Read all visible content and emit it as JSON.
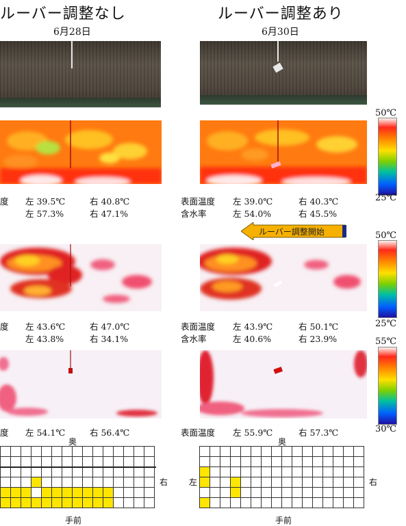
{
  "titles": {
    "left": "ルーバー調整なし",
    "right": "ルーバー調整あり"
  },
  "dates": {
    "left": "6月28日",
    "right": "6月30日"
  },
  "scales": [
    {
      "max": "50℃",
      "min": "25℃"
    },
    {
      "max": "50℃",
      "min": "25℃"
    },
    {
      "max": "55℃",
      "min": "30℃"
    }
  ],
  "arrow_label": "ルーバー調整開始",
  "rows": [
    {
      "left": {
        "label": "度",
        "left": "左 39.5℃",
        "right": "右 40.8℃",
        "sub_label": "",
        "sub_left": "左 57.3%",
        "sub_right": "右 47.1%"
      },
      "right": {
        "label": "表面温度",
        "left": "左 39.0℃",
        "right": "右 40.3℃",
        "sub_label": "含水率",
        "sub_left": "左 54.0%",
        "sub_right": "右 45.5%"
      }
    },
    {
      "left": {
        "label": "度",
        "left": "左 43.6℃",
        "right": "右 47.0℃",
        "sub_label": "",
        "sub_left": "左 43.8%",
        "sub_right": "右 34.1%"
      },
      "right": {
        "label": "表面温度",
        "left": "左 43.9℃",
        "right": "右 50.1℃",
        "sub_label": "含水率",
        "sub_left": "左 40.6%",
        "sub_right": "右 23.9%"
      }
    },
    {
      "left": {
        "label": "度",
        "left": "左 54.1℃",
        "right": "右 56.4℃"
      },
      "right": {
        "label": "表面温度",
        "left": "左 55.9℃",
        "right": "右 57.3℃"
      }
    }
  ],
  "grid_labels": {
    "back": "奥",
    "front": "手前",
    "left": "左",
    "right": "右"
  },
  "grids": {
    "left": {
      "cols": 16,
      "rows": 6,
      "highlight": [
        [
          3,
          3
        ],
        [
          4,
          0
        ],
        [
          4,
          1
        ],
        [
          4,
          2
        ],
        [
          4,
          4
        ],
        [
          4,
          5
        ],
        [
          4,
          6
        ],
        [
          4,
          7
        ],
        [
          4,
          8
        ],
        [
          4,
          9
        ],
        [
          4,
          10
        ],
        [
          5,
          0
        ],
        [
          5,
          1
        ],
        [
          5,
          2
        ],
        [
          5,
          3
        ],
        [
          5,
          4
        ],
        [
          5,
          5
        ],
        [
          5,
          6
        ],
        [
          5,
          7
        ],
        [
          5,
          8
        ],
        [
          5,
          9
        ],
        [
          5,
          10
        ]
      ]
    },
    "right": {
      "cols": 16,
      "rows": 6,
      "highlight": [
        [
          2,
          0
        ],
        [
          3,
          0
        ],
        [
          3,
          3
        ],
        [
          4,
          3
        ],
        [
          5,
          0
        ]
      ]
    }
  }
}
